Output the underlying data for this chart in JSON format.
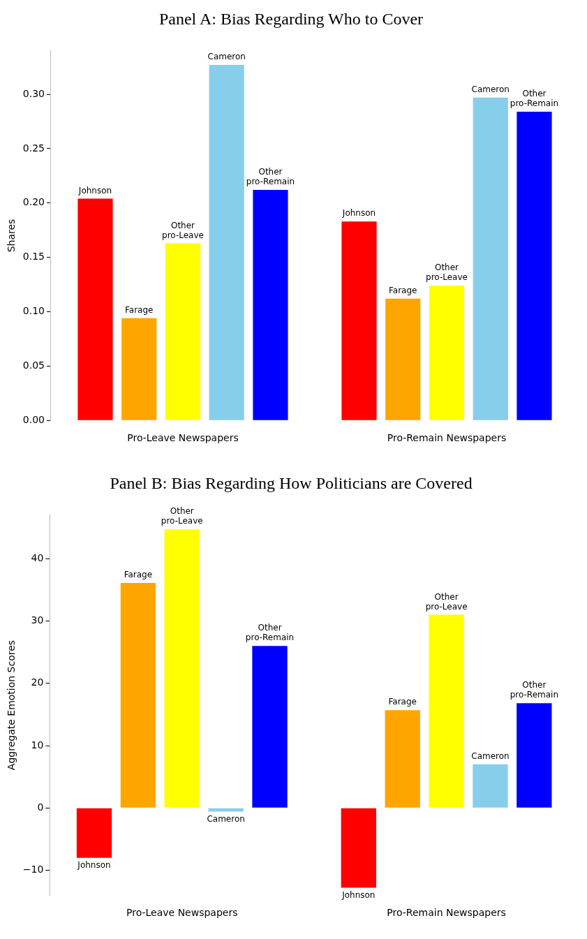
{
  "chart_data": [
    {
      "type": "bar",
      "title": "Panel A: Bias Regarding Who to Cover",
      "ylabel": "Shares",
      "ylim": [
        0,
        0.34
      ],
      "categories": [
        "Pro-Leave Newspapers",
        "Pro-Remain Newspapers"
      ],
      "series": [
        {
          "name": "Johnson",
          "color": "#ff0000",
          "values": [
            0.204,
            0.183
          ]
        },
        {
          "name": "Farage",
          "color": "#ffa500",
          "values": [
            0.094,
            0.112
          ]
        },
        {
          "name": "Other pro-Leave",
          "color": "#ffff00",
          "values": [
            0.163,
            0.124
          ]
        },
        {
          "name": "Cameron",
          "color": "#87ceeb",
          "values": [
            0.327,
            0.297
          ]
        },
        {
          "name": "Other pro-Remain",
          "color": "#0000ff",
          "values": [
            0.212,
            0.284
          ]
        }
      ],
      "yticks": [
        {
          "value": 0,
          "label": "0.00"
        },
        {
          "value": 0.05,
          "label": "0.05"
        },
        {
          "value": 0.1,
          "label": "0.10"
        },
        {
          "value": 0.15,
          "label": "0.15"
        },
        {
          "value": 0.2,
          "label": "0.20"
        },
        {
          "value": 0.25,
          "label": "0.25"
        },
        {
          "value": 0.3,
          "label": "0.30"
        }
      ],
      "grid": false,
      "legend": false
    },
    {
      "type": "bar",
      "title": "Panel B: Bias Regarding How Politicians are Covered",
      "ylabel": "Aggregate Emotion Scores",
      "ylim": [
        -14,
        47
      ],
      "categories": [
        "Pro-Leave Newspapers",
        "Pro-Remain Newspapers"
      ],
      "series": [
        {
          "name": "Johnson",
          "color": "#ff0000",
          "values": [
            -8.0,
            -12.8
          ]
        },
        {
          "name": "Farage",
          "color": "#ffa500",
          "values": [
            36.1,
            15.7
          ]
        },
        {
          "name": "Other pro-Leave",
          "color": "#ffff00",
          "values": [
            44.7,
            31.0
          ]
        },
        {
          "name": "Cameron",
          "color": "#87ceeb",
          "values": [
            -0.6,
            7.0
          ]
        },
        {
          "name": "Other pro-Remain",
          "color": "#0000ff",
          "values": [
            26.0,
            16.8
          ]
        }
      ],
      "yticks": [
        {
          "value": -10,
          "label": "−10"
        },
        0,
        10,
        20,
        30,
        40
      ],
      "grid": false,
      "legend": false
    }
  ]
}
